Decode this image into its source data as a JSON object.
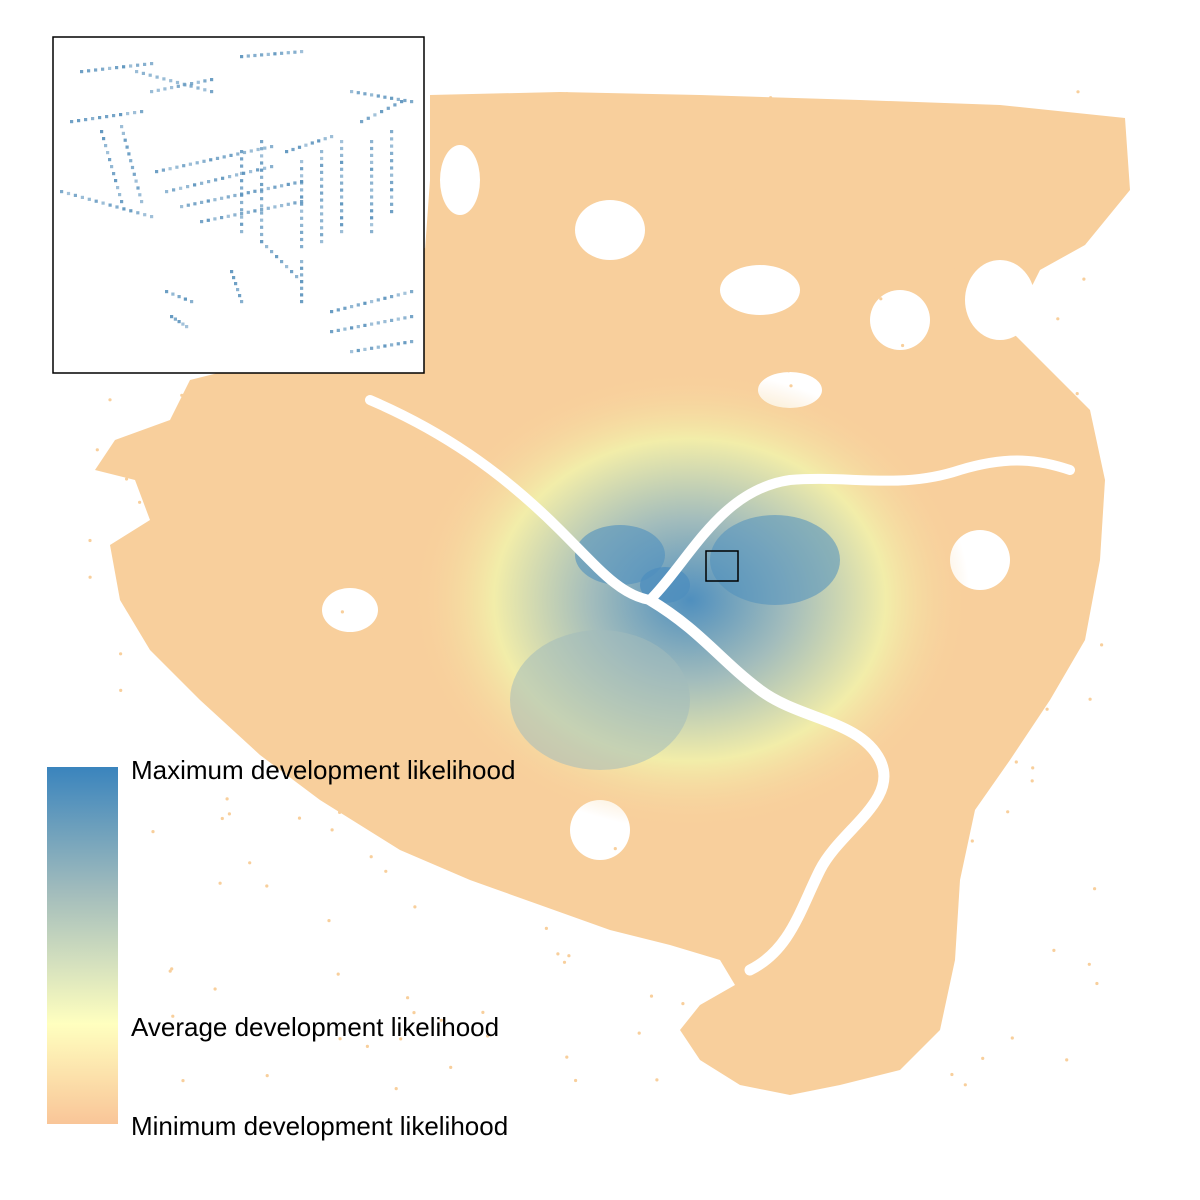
{
  "legend": {
    "max_label": "Maximum development likelihood",
    "avg_label": "Average development likelihood",
    "min_label": "Minimum development likelihood",
    "colors": {
      "max": "#3a84bd",
      "mid_high": "#a2bcbc",
      "avg": "#ffffbf",
      "min": "#f9c598"
    }
  },
  "map": {
    "region_color": "#f8cf9c",
    "mid_color": "#f2eda9",
    "high_color": "#4f8fbe",
    "water_color": "#ffffff",
    "inset_point_color": "#5b93bd",
    "inset_border_color": "#000000"
  }
}
